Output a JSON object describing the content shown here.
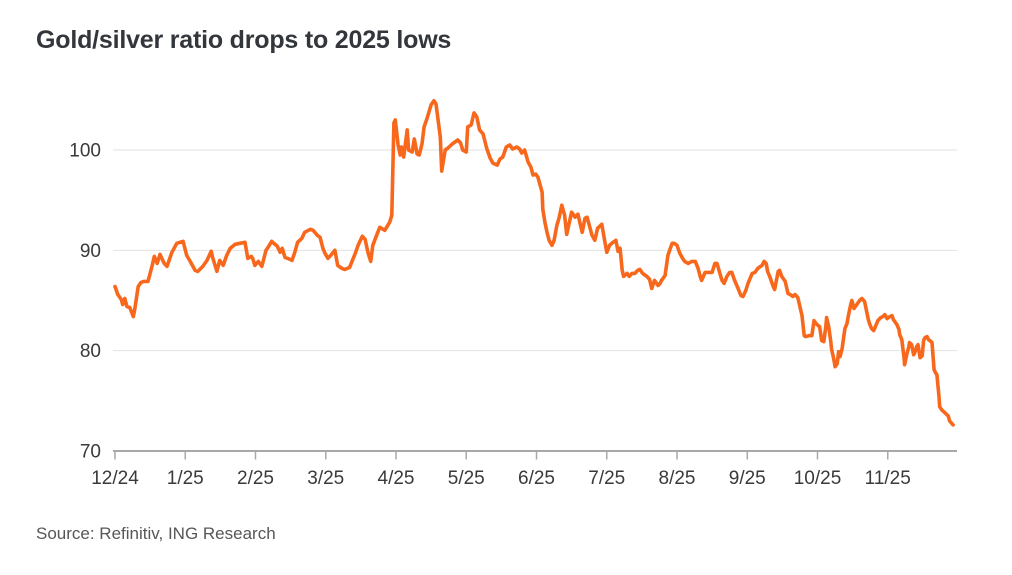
{
  "header": {
    "title": "Gold/silver ratio drops to 2025 lows"
  },
  "footer": {
    "source": "Source: Refinitiv, ING Research"
  },
  "style": {
    "accent_line_color": "#f8681c",
    "title_color": "#33373c",
    "axis_text_color": "#3a3a3a",
    "grid_color": "#e2e2e2",
    "axis_line_color": "#a8a8a8",
    "background": "#ffffff"
  },
  "chart_data": {
    "type": "line",
    "title": "Gold/silver ratio drops to 2025 lows",
    "xlabel": "",
    "ylabel": "",
    "x_tick_labels": [
      "12/24",
      "1/25",
      "2/25",
      "3/25",
      "4/25",
      "5/25",
      "6/25",
      "7/25",
      "8/25",
      "9/25",
      "10/25",
      "11/25"
    ],
    "x_unit": "months after the 12/24 tick (0 = Dec 2024, 1 = Jan 2025, ... 11.93 = late Nov 2025)",
    "y_ticks": [
      70,
      80,
      90,
      100
    ],
    "y_range": [
      70,
      105.5
    ],
    "grid": "horizontal gridlines at y ticks, no vertical grid",
    "legend": "none",
    "series": [
      {
        "name": "Gold/silver ratio",
        "color": "#f8681c",
        "points": [
          [
            0,
            86.4
          ],
          [
            0.04,
            85.6
          ],
          [
            0.09,
            85.1
          ],
          [
            0.11,
            84.6
          ],
          [
            0.14,
            85.2
          ],
          [
            0.17,
            84.4
          ],
          [
            0.21,
            84.3
          ],
          [
            0.26,
            83.4
          ],
          [
            0.28,
            84.1
          ],
          [
            0.33,
            86.4
          ],
          [
            0.37,
            86.8
          ],
          [
            0.41,
            86.9
          ],
          [
            0.47,
            86.9
          ],
          [
            0.53,
            88.5
          ],
          [
            0.56,
            89.4
          ],
          [
            0.6,
            88.7
          ],
          [
            0.64,
            89.6
          ],
          [
            0.7,
            88.7
          ],
          [
            0.74,
            88.4
          ],
          [
            0.81,
            89.8
          ],
          [
            0.88,
            90.7
          ],
          [
            0.97,
            90.9
          ],
          [
            1.02,
            89.5
          ],
          [
            1.07,
            88.9
          ],
          [
            1.14,
            88
          ],
          [
            1.18,
            87.9
          ],
          [
            1.25,
            88.4
          ],
          [
            1.31,
            89
          ],
          [
            1.37,
            89.9
          ],
          [
            1.39,
            89.3
          ],
          [
            1.45,
            87.9
          ],
          [
            1.49,
            89
          ],
          [
            1.54,
            88.5
          ],
          [
            1.59,
            89.5
          ],
          [
            1.64,
            90.2
          ],
          [
            1.71,
            90.6
          ],
          [
            1.78,
            90.7
          ],
          [
            1.85,
            90.8
          ],
          [
            1.89,
            89.2
          ],
          [
            1.94,
            89.4
          ],
          [
            1.96,
            89.2
          ],
          [
            1.99,
            88.5
          ],
          [
            2.04,
            88.9
          ],
          [
            2.09,
            88.4
          ],
          [
            2.15,
            90
          ],
          [
            2.18,
            90.3
          ],
          [
            2.23,
            90.9
          ],
          [
            2.26,
            90.7
          ],
          [
            2.31,
            90.4
          ],
          [
            2.35,
            89.8
          ],
          [
            2.38,
            90.2
          ],
          [
            2.42,
            89.3
          ],
          [
            2.46,
            89.2
          ],
          [
            2.52,
            89
          ],
          [
            2.56,
            89.8
          ],
          [
            2.6,
            90.8
          ],
          [
            2.66,
            91.2
          ],
          [
            2.7,
            91.8
          ],
          [
            2.78,
            92.1
          ],
          [
            2.82,
            92
          ],
          [
            2.88,
            91.5
          ],
          [
            2.92,
            91.3
          ],
          [
            2.96,
            90.2
          ],
          [
            2.99,
            89.7
          ],
          [
            3.03,
            89.2
          ],
          [
            3.07,
            89.5
          ],
          [
            3.13,
            90
          ],
          [
            3.17,
            88.5
          ],
          [
            3.23,
            88.2
          ],
          [
            3.27,
            88.1
          ],
          [
            3.34,
            88.3
          ],
          [
            3.42,
            89.7
          ],
          [
            3.46,
            90.5
          ],
          [
            3.52,
            91.4
          ],
          [
            3.56,
            91.1
          ],
          [
            3.6,
            89.8
          ],
          [
            3.64,
            88.9
          ],
          [
            3.67,
            90.5
          ],
          [
            3.73,
            91.6
          ],
          [
            3.77,
            92.3
          ],
          [
            3.84,
            92
          ],
          [
            3.91,
            92.8
          ],
          [
            3.94,
            93.5
          ],
          [
            3.97,
            102.7
          ],
          [
            3.99,
            103
          ],
          [
            4.03,
            100.5
          ],
          [
            4.06,
            99.5
          ],
          [
            4.08,
            100.3
          ],
          [
            4.11,
            99.3
          ],
          [
            4.16,
            102
          ],
          [
            4.18,
            100
          ],
          [
            4.23,
            99.8
          ],
          [
            4.26,
            101.1
          ],
          [
            4.3,
            99.6
          ],
          [
            4.33,
            99.5
          ],
          [
            4.37,
            100.6
          ],
          [
            4.4,
            102.3
          ],
          [
            4.44,
            103.1
          ],
          [
            4.5,
            104.5
          ],
          [
            4.54,
            104.9
          ],
          [
            4.57,
            104.6
          ],
          [
            4.63,
            101.3
          ],
          [
            4.65,
            97.9
          ],
          [
            4.7,
            100
          ],
          [
            4.74,
            100.2
          ],
          [
            4.8,
            100.6
          ],
          [
            4.84,
            100.8
          ],
          [
            4.88,
            101
          ],
          [
            4.92,
            100.7
          ],
          [
            4.95,
            100
          ],
          [
            5,
            99.8
          ],
          [
            5.02,
            102.3
          ],
          [
            5.07,
            102.5
          ],
          [
            5.11,
            103.7
          ],
          [
            5.15,
            103.3
          ],
          [
            5.19,
            102
          ],
          [
            5.24,
            101.6
          ],
          [
            5.29,
            100.2
          ],
          [
            5.34,
            99.2
          ],
          [
            5.38,
            98.7
          ],
          [
            5.44,
            98.5
          ],
          [
            5.48,
            99.1
          ],
          [
            5.52,
            99.3
          ],
          [
            5.57,
            100.3
          ],
          [
            5.62,
            100.5
          ],
          [
            5.66,
            100.1
          ],
          [
            5.72,
            100.3
          ],
          [
            5.76,
            100.1
          ],
          [
            5.79,
            99.7
          ],
          [
            5.83,
            100
          ],
          [
            5.88,
            98.8
          ],
          [
            5.92,
            98.3
          ],
          [
            5.95,
            97.5
          ],
          [
            5.99,
            97.6
          ],
          [
            6.02,
            97.3
          ],
          [
            6.08,
            95.8
          ],
          [
            6.09,
            94.1
          ],
          [
            6.12,
            92.8
          ],
          [
            6.15,
            91.8
          ],
          [
            6.18,
            91
          ],
          [
            6.22,
            90.5
          ],
          [
            6.25,
            91
          ],
          [
            6.29,
            92.5
          ],
          [
            6.32,
            93.2
          ],
          [
            6.36,
            94.5
          ],
          [
            6.4,
            93.5
          ],
          [
            6.43,
            91.6
          ],
          [
            6.5,
            93.8
          ],
          [
            6.55,
            93.3
          ],
          [
            6.59,
            93.6
          ],
          [
            6.65,
            91.8
          ],
          [
            6.69,
            93.2
          ],
          [
            6.72,
            93.3
          ],
          [
            6.79,
            91.5
          ],
          [
            6.83,
            91
          ],
          [
            6.87,
            92.2
          ],
          [
            6.93,
            92.6
          ],
          [
            6.97,
            91
          ],
          [
            7,
            89.8
          ],
          [
            7.04,
            90.5
          ],
          [
            7.09,
            90.8
          ],
          [
            7.13,
            91
          ],
          [
            7.16,
            89.9
          ],
          [
            7.19,
            90.2
          ],
          [
            7.22,
            88
          ],
          [
            7.24,
            87.4
          ],
          [
            7.29,
            87.7
          ],
          [
            7.32,
            87.4
          ],
          [
            7.36,
            87.7
          ],
          [
            7.4,
            87.7
          ],
          [
            7.44,
            88
          ],
          [
            7.47,
            88.1
          ],
          [
            7.51,
            87.7
          ],
          [
            7.57,
            87.4
          ],
          [
            7.61,
            87.1
          ],
          [
            7.64,
            86.2
          ],
          [
            7.68,
            87
          ],
          [
            7.73,
            86.5
          ],
          [
            7.76,
            86.7
          ],
          [
            7.78,
            87
          ],
          [
            7.83,
            87.5
          ],
          [
            7.87,
            89.5
          ],
          [
            7.93,
            90.7
          ],
          [
            7.96,
            90.7
          ],
          [
            8,
            90.5
          ],
          [
            8.04,
            89.7
          ],
          [
            8.08,
            89.2
          ],
          [
            8.11,
            88.9
          ],
          [
            8.16,
            88.7
          ],
          [
            8.21,
            88.9
          ],
          [
            8.26,
            88.9
          ],
          [
            8.3,
            88.2
          ],
          [
            8.33,
            87.4
          ],
          [
            8.35,
            87
          ],
          [
            8.4,
            87.8
          ],
          [
            8.44,
            87.8
          ],
          [
            8.5,
            87.8
          ],
          [
            8.54,
            88.7
          ],
          [
            8.57,
            88.7
          ],
          [
            8.61,
            87.7
          ],
          [
            8.64,
            87
          ],
          [
            8.67,
            86.7
          ],
          [
            8.71,
            87.4
          ],
          [
            8.75,
            87.8
          ],
          [
            8.78,
            87.8
          ],
          [
            8.82,
            87
          ],
          [
            8.87,
            86.2
          ],
          [
            8.91,
            85.5
          ],
          [
            8.94,
            85.4
          ],
          [
            8.98,
            86
          ],
          [
            9.01,
            86.7
          ],
          [
            9.07,
            87.7
          ],
          [
            9.11,
            87.8
          ],
          [
            9.15,
            88.2
          ],
          [
            9.21,
            88.5
          ],
          [
            9.24,
            88.9
          ],
          [
            9.27,
            88.7
          ],
          [
            9.29,
            87.9
          ],
          [
            9.32,
            87.4
          ],
          [
            9.37,
            86.4
          ],
          [
            9.39,
            86.1
          ],
          [
            9.44,
            87.9
          ],
          [
            9.46,
            88
          ],
          [
            9.49,
            87.4
          ],
          [
            9.54,
            86.9
          ],
          [
            9.58,
            85.7
          ],
          [
            9.61,
            85.6
          ],
          [
            9.65,
            85.4
          ],
          [
            9.68,
            85.6
          ],
          [
            9.72,
            85.3
          ],
          [
            9.78,
            83.5
          ],
          [
            9.81,
            81.5
          ],
          [
            9.83,
            81.4
          ],
          [
            9.88,
            81.5
          ],
          [
            9.92,
            81.5
          ],
          [
            9.95,
            83
          ],
          [
            9.98,
            82.7
          ],
          [
            10.01,
            82.5
          ],
          [
            10.03,
            82.4
          ],
          [
            10.06,
            81
          ],
          [
            10.09,
            80.9
          ],
          [
            10.12,
            82.5
          ],
          [
            10.13,
            83.3
          ],
          [
            10.16,
            82.4
          ],
          [
            10.19,
            80.9
          ],
          [
            10.2,
            80.2
          ],
          [
            10.23,
            79.2
          ],
          [
            10.25,
            78.4
          ],
          [
            10.28,
            78.7
          ],
          [
            10.3,
            79.9
          ],
          [
            10.32,
            79.4
          ],
          [
            10.35,
            80.2
          ],
          [
            10.37,
            81.2
          ],
          [
            10.39,
            82.2
          ],
          [
            10.42,
            82.7
          ],
          [
            10.44,
            83.5
          ],
          [
            10.47,
            84.5
          ],
          [
            10.49,
            85
          ],
          [
            10.52,
            84.2
          ],
          [
            10.54,
            84.4
          ],
          [
            10.57,
            84.7
          ],
          [
            10.6,
            85
          ],
          [
            10.63,
            85.2
          ],
          [
            10.67,
            84.9
          ],
          [
            10.72,
            83.2
          ],
          [
            10.74,
            82.7
          ],
          [
            10.77,
            82.2
          ],
          [
            10.8,
            82
          ],
          [
            10.83,
            82.5
          ],
          [
            10.86,
            83
          ],
          [
            10.9,
            83.3
          ],
          [
            10.93,
            83.4
          ],
          [
            10.96,
            83.6
          ],
          [
            10.99,
            83.2
          ],
          [
            11.03,
            83.4
          ],
          [
            11.06,
            83.5
          ],
          [
            11.08,
            83.1
          ],
          [
            11.13,
            82.6
          ],
          [
            11.16,
            82.1
          ],
          [
            11.17,
            81.6
          ],
          [
            11.2,
            81.1
          ],
          [
            11.23,
            79.4
          ],
          [
            11.24,
            78.6
          ],
          [
            11.27,
            79.6
          ],
          [
            11.3,
            80.4
          ],
          [
            11.31,
            80.8
          ],
          [
            11.34,
            80.6
          ],
          [
            11.37,
            79.6
          ],
          [
            11.39,
            79.9
          ],
          [
            11.41,
            80.4
          ],
          [
            11.43,
            80.6
          ],
          [
            11.46,
            79.3
          ],
          [
            11.49,
            79.5
          ],
          [
            11.51,
            81
          ],
          [
            11.53,
            81.3
          ],
          [
            11.56,
            81.4
          ],
          [
            11.58,
            81.1
          ],
          [
            11.6,
            81
          ],
          [
            11.63,
            80.8
          ],
          [
            11.66,
            78.1
          ],
          [
            11.68,
            77.8
          ],
          [
            11.7,
            77.6
          ],
          [
            11.73,
            75.4
          ],
          [
            11.74,
            74.4
          ],
          [
            11.77,
            74.1
          ],
          [
            11.8,
            73.9
          ],
          [
            11.83,
            73.7
          ],
          [
            11.86,
            73.5
          ],
          [
            11.88,
            73
          ],
          [
            11.93,
            72.6
          ]
        ]
      }
    ]
  }
}
